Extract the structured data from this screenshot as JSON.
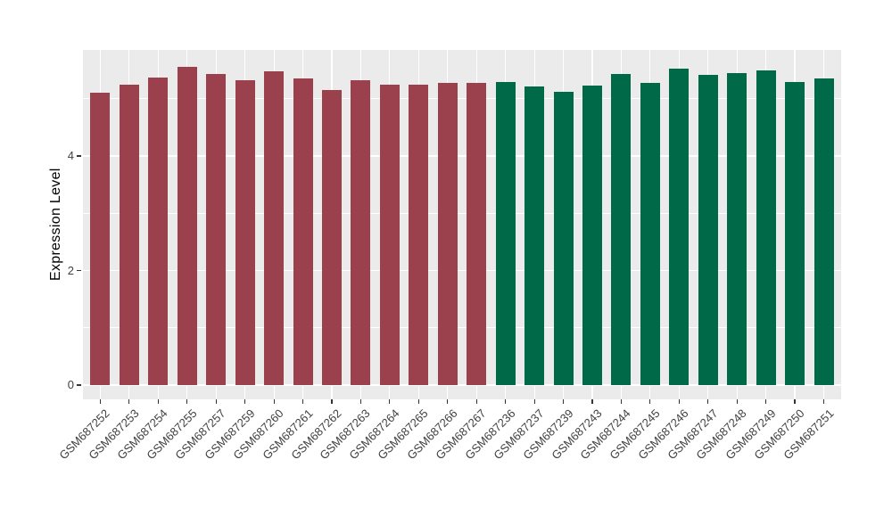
{
  "figure": {
    "background": "#FFFFFF",
    "panel_background": "#EBEBEB",
    "gridline_color": "#FFFFFF",
    "axis_text_color": "#404040",
    "axis_title_color": "#000000",
    "tick_mark_color": "#333333"
  },
  "chart_data": {
    "type": "bar",
    "title": "",
    "xlabel": "",
    "ylabel": "Expression Level",
    "ylim": [
      0,
      5.85
    ],
    "yticks": [
      0,
      2,
      4
    ],
    "ytick_labels": [
      "0",
      "2",
      "4"
    ],
    "minor_gridlines": [
      1,
      3,
      5
    ],
    "grid": true,
    "legend": false,
    "categories": [
      "GSM687252",
      "GSM687253",
      "GSM687254",
      "GSM687255",
      "GSM687257",
      "GSM687259",
      "GSM687260",
      "GSM687261",
      "GSM687262",
      "GSM687263",
      "GSM687264",
      "GSM687265",
      "GSM687266",
      "GSM687267",
      "GSM687236",
      "GSM687237",
      "GSM687239",
      "GSM687243",
      "GSM687244",
      "GSM687245",
      "GSM687246",
      "GSM687247",
      "GSM687248",
      "GSM687249",
      "GSM687250",
      "GSM687251"
    ],
    "values": [
      5.1,
      5.25,
      5.37,
      5.56,
      5.43,
      5.33,
      5.48,
      5.35,
      5.15,
      5.33,
      5.25,
      5.25,
      5.28,
      5.27,
      5.29,
      5.22,
      5.12,
      5.23,
      5.43,
      5.27,
      5.52,
      5.41,
      5.45,
      5.49,
      5.29,
      5.36
    ],
    "bar_group_index": [
      0,
      0,
      0,
      0,
      0,
      0,
      0,
      0,
      0,
      0,
      0,
      0,
      0,
      0,
      1,
      1,
      1,
      1,
      1,
      1,
      1,
      1,
      1,
      1,
      1,
      1
    ],
    "group_colors": [
      "#9B414E",
      "#006948"
    ]
  }
}
